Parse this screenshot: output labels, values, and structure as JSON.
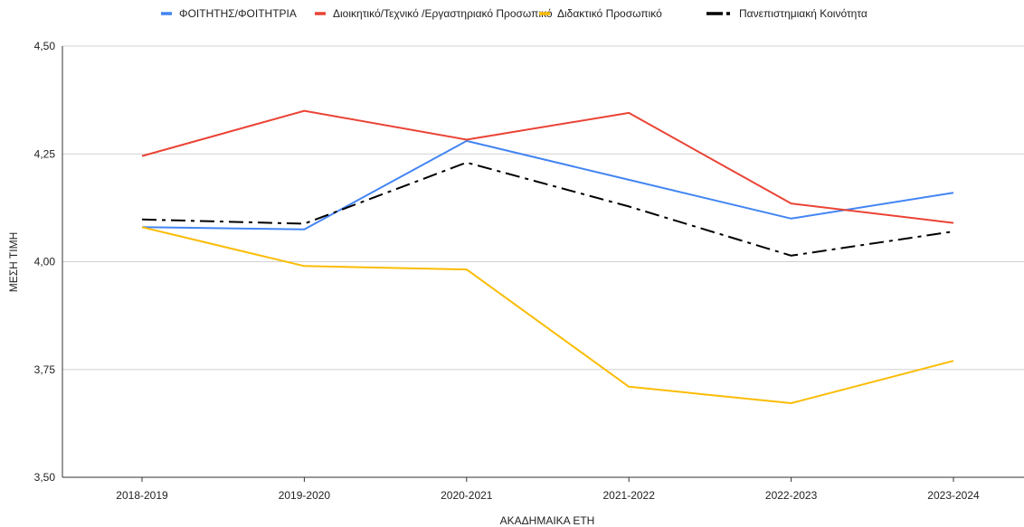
{
  "chart_data": {
    "type": "line",
    "title": "",
    "xlabel": "ΑΚΑΔΗΜΑΙΚΑ ΕΤΗ",
    "ylabel": "ΜΕΣΗ ΤΙΜΗ",
    "categories": [
      "2018-2019",
      "2019-2020",
      "2020-2021",
      "2021-2022",
      "2022-2023",
      "2023-2024"
    ],
    "ylim": [
      3.5,
      4.5
    ],
    "yticks": [
      {
        "value": 3.5,
        "label": "3,50"
      },
      {
        "value": 3.75,
        "label": "3,75"
      },
      {
        "value": 4.0,
        "label": "4,00"
      },
      {
        "value": 4.25,
        "label": "4,25"
      },
      {
        "value": 4.5,
        "label": "4,50"
      }
    ],
    "grid": true,
    "legend_position": "top",
    "series": [
      {
        "name": "ΦΟΙΤΗΤΗΣ/ΦΟΙΤΗΤΡΙΑ",
        "color": "#4285f4",
        "dash": "solid",
        "values": [
          4.08,
          4.075,
          4.28,
          4.19,
          4.1,
          4.16
        ]
      },
      {
        "name": "Διοικητικό/Τεχνικό /Εργαστηριακό Προσωπικό",
        "color": "#ea4335",
        "dash": "solid",
        "values": [
          4.245,
          4.35,
          4.283,
          4.345,
          4.135,
          4.09
        ]
      },
      {
        "name": "Διδακτικό Προσωπικό",
        "color": "#fbbc04",
        "dash": "solid",
        "values": [
          4.08,
          3.99,
          3.982,
          3.71,
          3.672,
          3.77
        ]
      },
      {
        "name": "Πανεπιστημιακή Κοινότητα",
        "color": "#000000",
        "dash": "dashdot",
        "values": [
          4.098,
          4.088,
          4.23,
          4.128,
          4.014,
          4.07
        ]
      }
    ]
  }
}
